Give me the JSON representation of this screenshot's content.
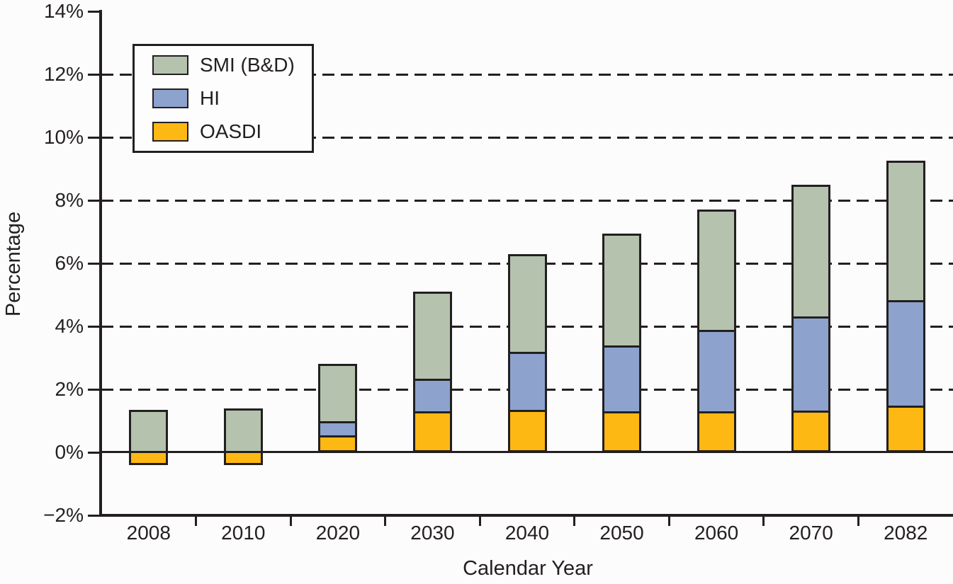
{
  "chart_data": {
    "type": "bar",
    "stacked": true,
    "title": "",
    "xlabel": "Calendar Year",
    "ylabel": "Percentage",
    "categories": [
      "2008",
      "2010",
      "2020",
      "2030",
      "2040",
      "2050",
      "2060",
      "2070",
      "2082"
    ],
    "series": [
      {
        "name": "OASDI",
        "color": "#fdb813",
        "values": [
          -0.4,
          -0.4,
          0.5,
          1.25,
          1.3,
          1.25,
          1.25,
          1.3,
          1.45
        ]
      },
      {
        "name": "HI",
        "color": "#8da3cd",
        "values": [
          0,
          0,
          0.45,
          1.05,
          1.85,
          2.1,
          2.6,
          3.0,
          3.35
        ]
      },
      {
        "name": "SMI (B&D)",
        "color": "#b5c3ae",
        "values": [
          1.35,
          1.4,
          1.85,
          2.8,
          3.15,
          3.6,
          3.85,
          4.2,
          4.45
        ]
      }
    ],
    "stack_totals": [
      1.35,
      1.4,
      2.8,
      5.1,
      6.3,
      6.95,
      7.7,
      8.5,
      9.25
    ],
    "ylim": [
      -2,
      14
    ],
    "y_ticks": [
      {
        "label": "14%",
        "value": 14
      },
      {
        "label": "12%",
        "value": 12
      },
      {
        "label": "10%",
        "value": 10
      },
      {
        "label": "8%",
        "value": 8
      },
      {
        "label": "6%",
        "value": 6
      },
      {
        "label": "4%",
        "value": 4
      },
      {
        "label": "2%",
        "value": 2
      },
      {
        "label": "0%",
        "value": 0
      },
      {
        "label": "−2%",
        "value": -2
      }
    ],
    "grid_values": [
      12,
      10,
      8,
      6,
      4,
      2
    ],
    "grid_style": "dashed horizontal",
    "legend_position": "top-left"
  },
  "legend": {
    "items": [
      {
        "label": "SMI (B&D)",
        "color": "#b5c3ae"
      },
      {
        "label": "HI",
        "color": "#8da3cd"
      },
      {
        "label": "OASDI",
        "color": "#fdb813"
      }
    ]
  },
  "colors": {
    "axis": "#231f20",
    "text": "#231f20",
    "background": "#fcfcfc",
    "smi_green": "#b5c3ae",
    "hi_blue": "#8da3cd",
    "oasdi_yellow": "#fdb813"
  }
}
